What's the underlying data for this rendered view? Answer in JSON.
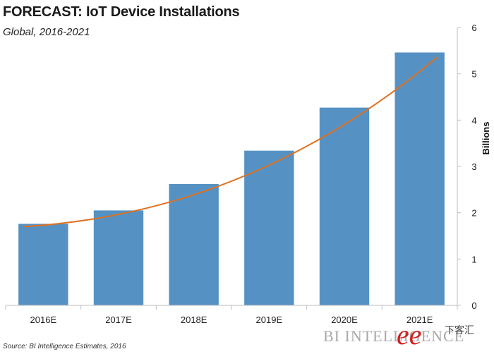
{
  "chart_data": {
    "type": "bar",
    "title": "FORECAST: IoT Device Installations",
    "subtitle": "Global, 2016-2021",
    "categories": [
      "2016E",
      "2017E",
      "2018E",
      "2019E",
      "2020E",
      "2021E"
    ],
    "values": [
      1.76,
      2.05,
      2.62,
      3.34,
      4.27,
      5.46
    ],
    "trendline": {
      "type": "line",
      "color": "#e07020",
      "x": [
        "2016E",
        "2021E"
      ],
      "y": [
        1.7,
        5.36
      ]
    },
    "ylabel": "Billions",
    "ylim": [
      0,
      6
    ],
    "yticks": [
      0,
      1,
      2,
      3,
      4,
      5,
      6
    ],
    "y_axis_side": "right",
    "bar_color": "#5592c3",
    "grid": false,
    "legend": "none"
  },
  "source": "Source: BI Intelligence Estimates, 2016",
  "branding": "BI INTELLIGENCE",
  "watermark_text": "下客汇"
}
